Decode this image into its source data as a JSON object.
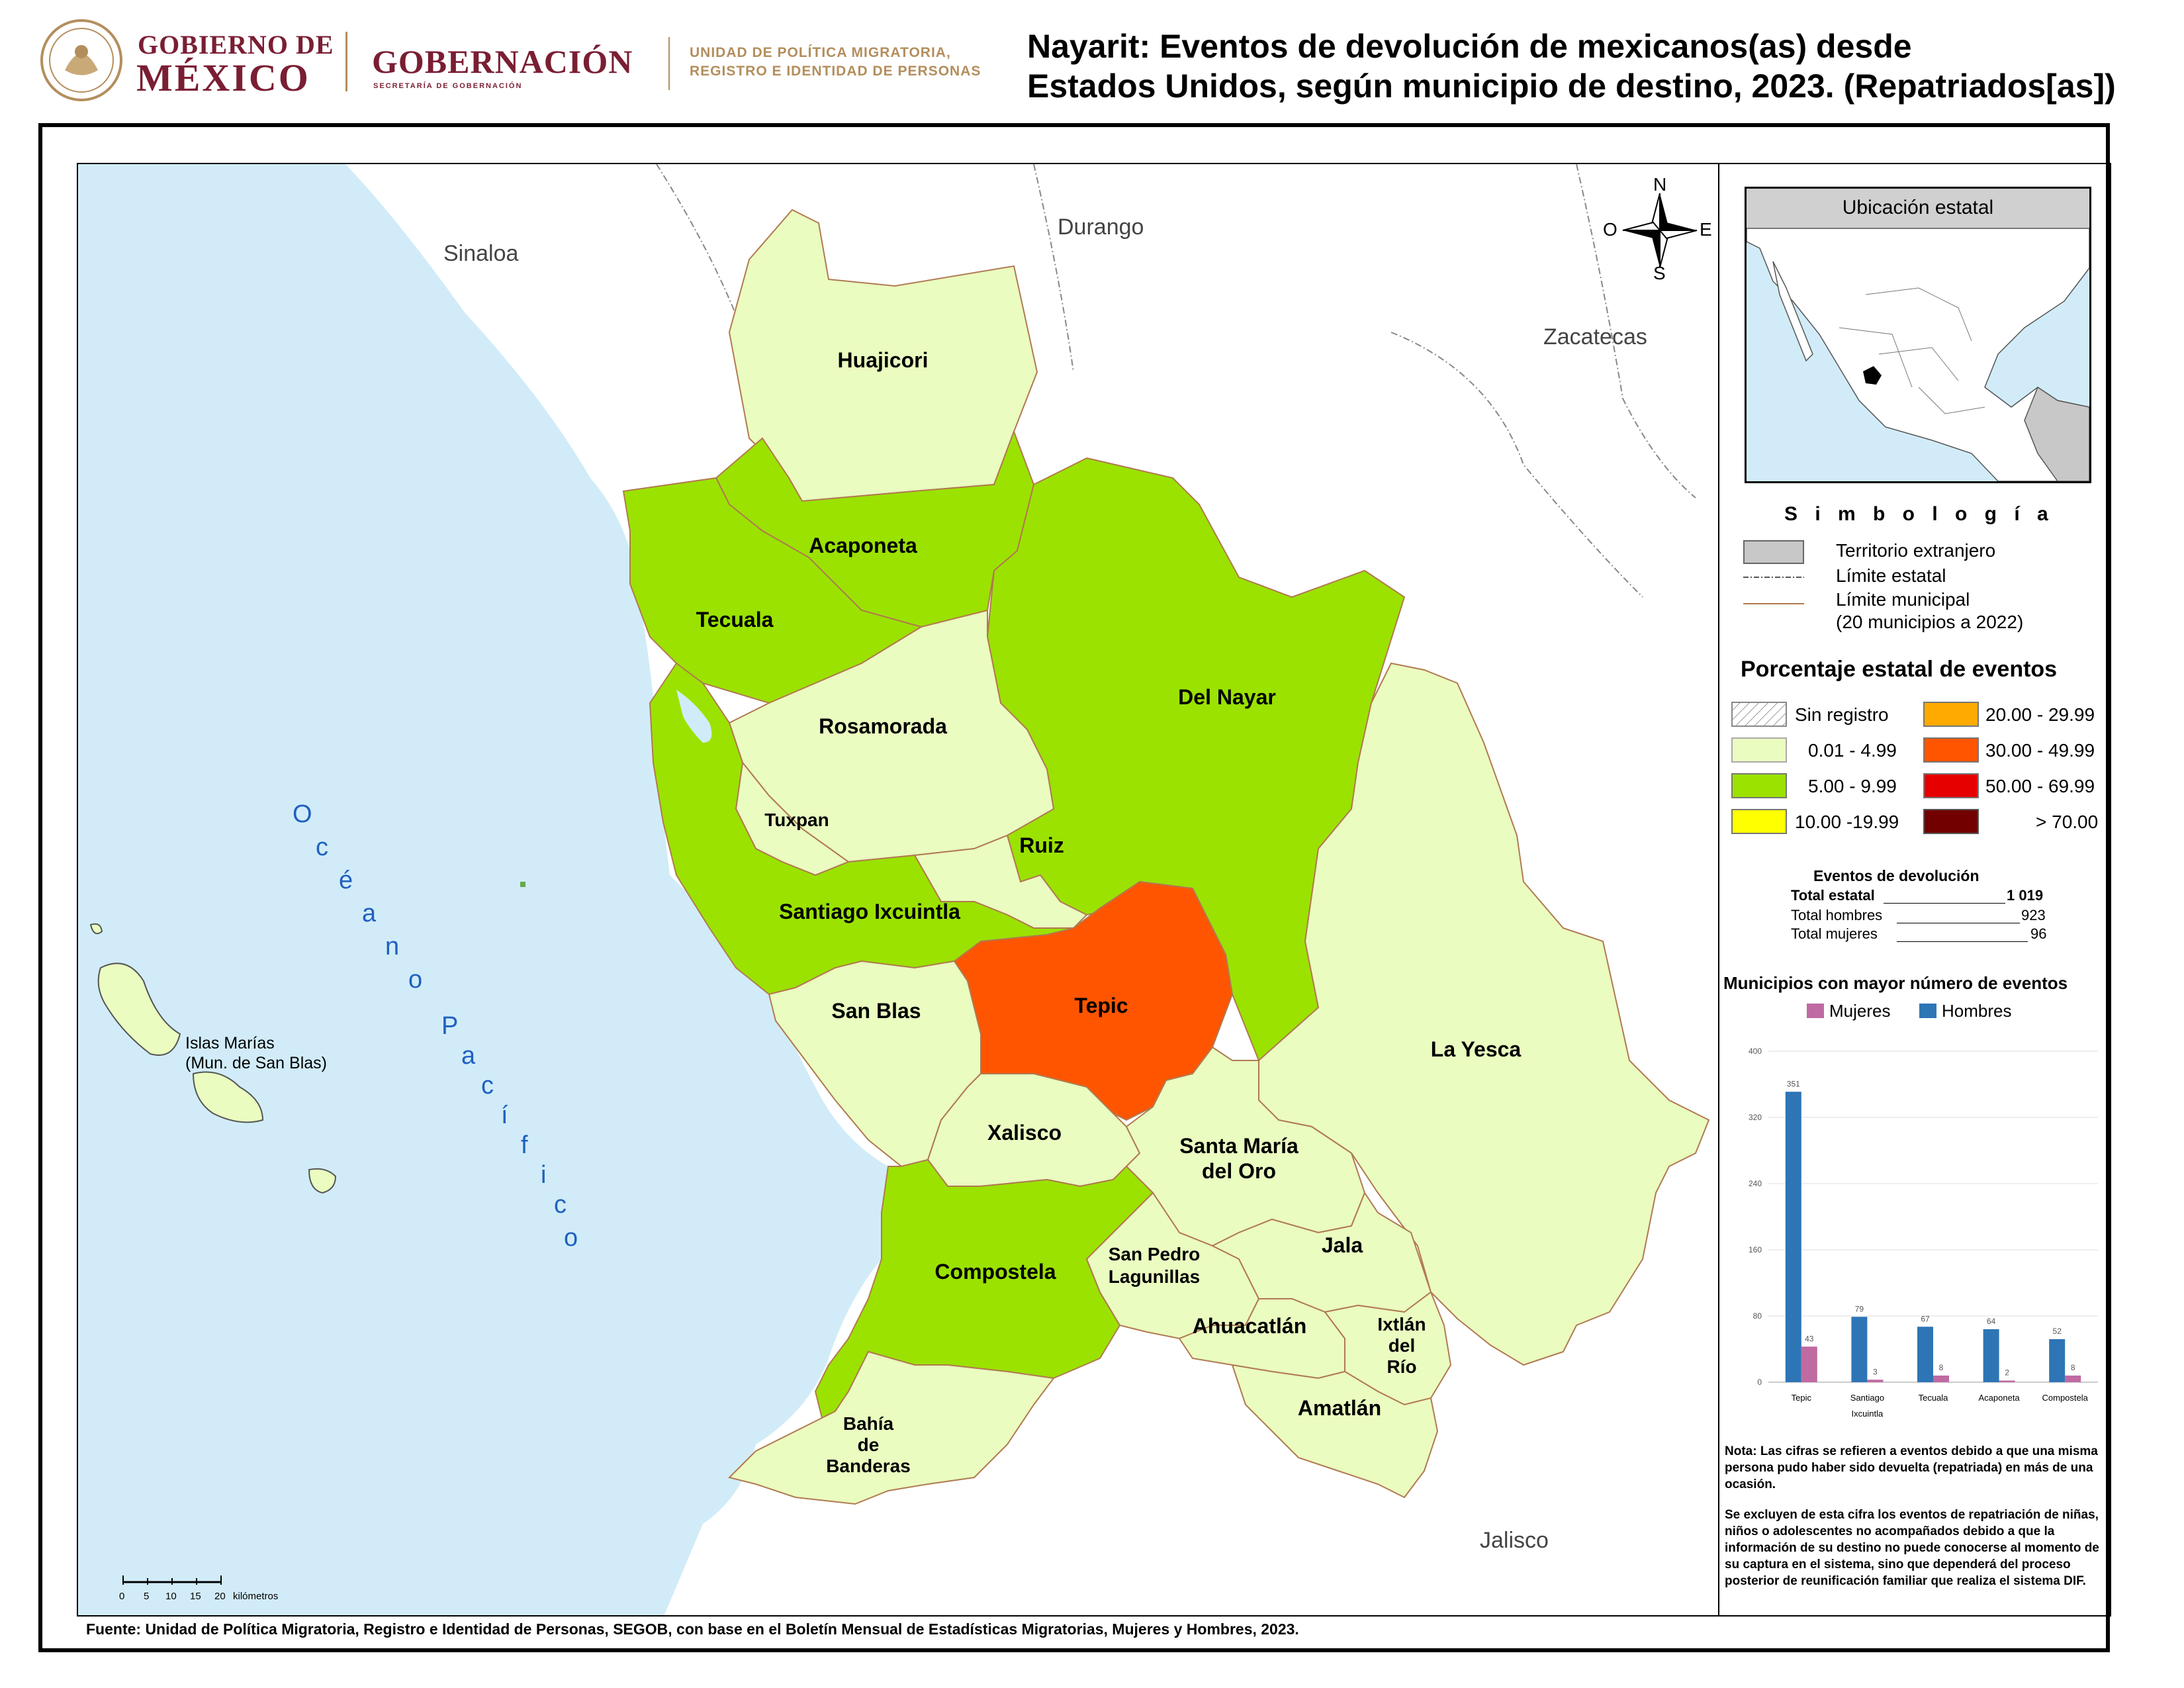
{
  "header": {
    "gov_line1": "GOBIERNO DE",
    "gov_line2": "MÉXICO",
    "gobernacion": "GOBERNACIÓN",
    "gobernacion_sub": "SECRETARÍA DE GOBERNACIÓN",
    "unit_line1": "UNIDAD DE POLÍTICA MIGRATORIA,",
    "unit_line2": "REGISTRO E IDENTIDAD DE PERSONAS",
    "title_line1": "Nayarit: Eventos de devolución de mexicanos(as) desde",
    "title_line2": "Estados Unidos, según municipio de destino, 2023. (Repatriados[as])"
  },
  "map": {
    "neighbors": [
      "Sinaloa",
      "Durango",
      "Zacatecas",
      "Jalisco"
    ],
    "ocean_letters": [
      "O",
      "c",
      "é",
      "a",
      "n",
      "o",
      "P",
      "a",
      "c",
      "í",
      "f",
      "i",
      "c",
      "o"
    ],
    "islands_line1": "Islas Marías",
    "islands_line2": "(Mun. de San Blas)",
    "compass": {
      "n": "N",
      "s": "S",
      "e": "E",
      "w": "O"
    },
    "scale_ticks": [
      "0",
      "5",
      "10",
      "15",
      "20"
    ],
    "scale_unit": "kilómetros",
    "municipalities": {
      "huajicori": "Huajicori",
      "acaponeta": "Acaponeta",
      "tecuala": "Tecuala",
      "del_nayar": "Del Nayar",
      "rosamorada": "Rosamorada",
      "tuxpan": "Tuxpan",
      "ruiz": "Ruiz",
      "santiago": "Santiago Ixcuintla",
      "san_blas": "San Blas",
      "tepic": "Tepic",
      "la_yesca": "La Yesca",
      "xalisco": "Xalisco",
      "santa_maria_1": "Santa María",
      "santa_maria_2": "del Oro",
      "compostela": "Compostela",
      "san_pedro_1": "San Pedro",
      "san_pedro_2": "Lagunillas",
      "jala": "Jala",
      "ahuacatlan": "Ahuacatlán",
      "ixtlan_1": "Ixtlán",
      "ixtlan_2": "del",
      "ixtlan_3": "Río",
      "amatlan": "Amatlán",
      "bahia_1": "Bahía",
      "bahia_2": "de",
      "bahia_3": "Banderas"
    }
  },
  "inset": {
    "title": "Ubicación estatal"
  },
  "legend": {
    "title": "S i m b o l o g í a",
    "foreign": "Territorio extranjero",
    "state_limit": "Límite estatal",
    "muni_limit": "Límite municipal",
    "muni_limit_note": "(20 municipios a 2022)"
  },
  "percent_legend": {
    "title": "Porcentaje estatal de eventos",
    "items": [
      {
        "label": "Sin registro",
        "color": "hatch"
      },
      {
        "label": "0.01  - 4.99",
        "color": "#eafcc0"
      },
      {
        "label": "5.00  - 9.99",
        "color": "#9be200"
      },
      {
        "label": "10.00 -19.99",
        "color": "#ffff00"
      },
      {
        "label": "20.00 - 29.99",
        "color": "#ffaa00"
      },
      {
        "label": "30.00 - 49.99",
        "color": "#ff5500"
      },
      {
        "label": "50.00 - 69.99",
        "color": "#e60000"
      },
      {
        "label": "> 70.00",
        "color": "#730000"
      }
    ]
  },
  "events": {
    "title": "Eventos de devolución",
    "total_label": "Total estatal",
    "total_value": "1 019",
    "men_label": "Total hombres",
    "men_value": "923",
    "women_label": "Total mujeres",
    "women_value": "96"
  },
  "colors": {
    "ocean": "#d1ecf8",
    "light_green": "#eafcc0",
    "green": "#9be200",
    "orange": "#ff5500",
    "women": "#c06aa2",
    "men": "#2e75b6"
  },
  "chart_data": {
    "type": "bar",
    "title": "Municipios con mayor número de eventos",
    "categories": [
      "Tepic",
      "Santiago Ixcuintla",
      "Tecuala",
      "Acaponeta",
      "Compostela"
    ],
    "series": [
      {
        "name": "Mujeres",
        "values": [
          43,
          3,
          8,
          2,
          8
        ]
      },
      {
        "name": "Hombres",
        "values": [
          351,
          79,
          67,
          64,
          52
        ]
      }
    ],
    "ylim": [
      0,
      400
    ],
    "yticks": [
      0,
      80,
      160,
      240,
      320,
      400
    ],
    "legend": "top",
    "grid": true
  },
  "notes": {
    "note1": "Nota: Las cifras se refieren a eventos debido a que una misma persona pudo haber sido devuelta (repatriada) en más de una ocasión.",
    "note2": "Se excluyen de esta cifra los eventos de repatriación de niñas, niños o adolescentes no acompañados debido a que la información de su destino no puede conocerse al momento de su captura en el sistema, sino que dependerá del proceso posterior de reunificación familiar que realiza el sistema DIF."
  },
  "source": "Fuente: Unidad de Política Migratoria, Registro e Identidad de Personas, SEGOB, con base en el Boletín Mensual de Estadísticas Migratorias, Mujeres y Hombres, 2023."
}
